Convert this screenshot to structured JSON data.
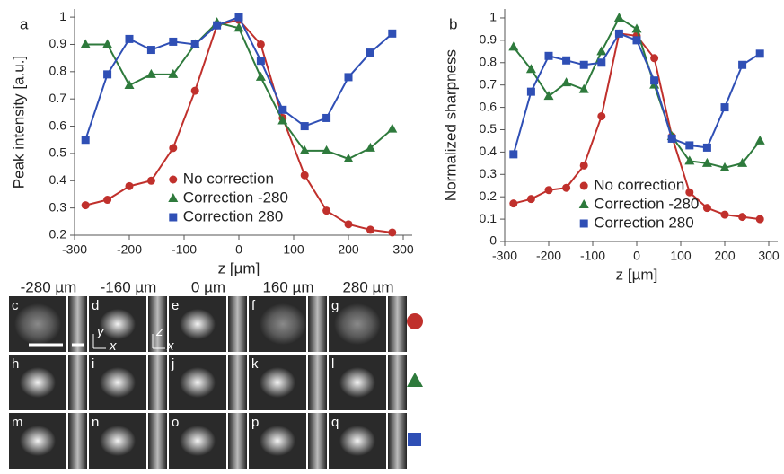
{
  "chart_data": [
    {
      "type": "line",
      "panel_label": "a",
      "ylabel": "Peak intensity [a.u.]",
      "xlabel": "z [µm]",
      "x": [
        -280,
        -240,
        -200,
        -160,
        -120,
        -80,
        -40,
        0,
        40,
        80,
        120,
        160,
        200,
        240,
        280
      ],
      "xlim": [
        -300,
        300
      ],
      "ylim": [
        0.2,
        1.03
      ],
      "xticks": [
        -300,
        -200,
        -100,
        0,
        100,
        200,
        300
      ],
      "yticks": [
        0.2,
        0.3,
        0.4,
        0.5,
        0.6,
        0.7,
        0.8,
        0.9,
        1
      ],
      "legend": "lower center",
      "series": [
        {
          "name": "No correction",
          "color": "#c0302c",
          "marker": "circle",
          "values": [
            0.31,
            0.33,
            0.38,
            0.4,
            0.52,
            0.73,
            0.97,
            0.99,
            0.9,
            0.63,
            0.42,
            0.29,
            0.24,
            0.22,
            0.21
          ]
        },
        {
          "name": "Correction -280",
          "color": "#2e7a3c",
          "marker": "triangle",
          "values": [
            0.9,
            0.9,
            0.75,
            0.79,
            0.79,
            0.9,
            0.98,
            0.96,
            0.78,
            0.62,
            0.51,
            0.51,
            0.48,
            0.52,
            0.59
          ]
        },
        {
          "name": "Correction  280",
          "color": "#2f4fb5",
          "marker": "square",
          "values": [
            0.55,
            0.79,
            0.92,
            0.88,
            0.91,
            0.9,
            0.97,
            1.0,
            0.84,
            0.66,
            0.6,
            0.63,
            0.78,
            0.87,
            0.94
          ]
        }
      ]
    },
    {
      "type": "line",
      "panel_label": "b",
      "ylabel": "Normalized sharpness",
      "xlabel": "z [µm]",
      "x": [
        -280,
        -240,
        -200,
        -160,
        -120,
        -80,
        -40,
        0,
        40,
        80,
        120,
        160,
        200,
        240,
        280
      ],
      "xlim": [
        -300,
        300
      ],
      "ylim": [
        0,
        1.04
      ],
      "xticks": [
        -300,
        -200,
        -100,
        0,
        100,
        200,
        300
      ],
      "yticks": [
        0,
        0.1,
        0.2,
        0.3,
        0.4,
        0.5,
        0.6,
        0.7,
        0.8,
        0.9,
        1
      ],
      "legend": "lower center",
      "series": [
        {
          "name": "No correction",
          "color": "#c0302c",
          "marker": "circle",
          "values": [
            0.17,
            0.19,
            0.23,
            0.24,
            0.34,
            0.56,
            0.93,
            0.92,
            0.82,
            0.47,
            0.22,
            0.15,
            0.12,
            0.11,
            0.1
          ]
        },
        {
          "name": "Correction -280",
          "color": "#2e7a3c",
          "marker": "triangle",
          "values": [
            0.87,
            0.77,
            0.65,
            0.71,
            0.68,
            0.85,
            1.0,
            0.95,
            0.7,
            0.47,
            0.36,
            0.35,
            0.33,
            0.35,
            0.45
          ]
        },
        {
          "name": "Correction  280",
          "color": "#2f4fb5",
          "marker": "square",
          "values": [
            0.39,
            0.67,
            0.83,
            0.81,
            0.79,
            0.8,
            0.93,
            0.9,
            0.72,
            0.46,
            0.43,
            0.42,
            0.6,
            0.79,
            0.84
          ]
        }
      ]
    }
  ],
  "panels": {
    "columns": [
      "-280 µm",
      "-160 µm",
      "0 µm",
      "160 µm",
      "280 µm"
    ],
    "rows": [
      [
        "c",
        "d",
        "e",
        "f",
        "g"
      ],
      [
        "h",
        "i",
        "j",
        "k",
        "l"
      ],
      [
        "m",
        "n",
        "o",
        "p",
        "q"
      ]
    ],
    "axis_labels": [
      "y",
      "x",
      "z",
      "x"
    ]
  }
}
